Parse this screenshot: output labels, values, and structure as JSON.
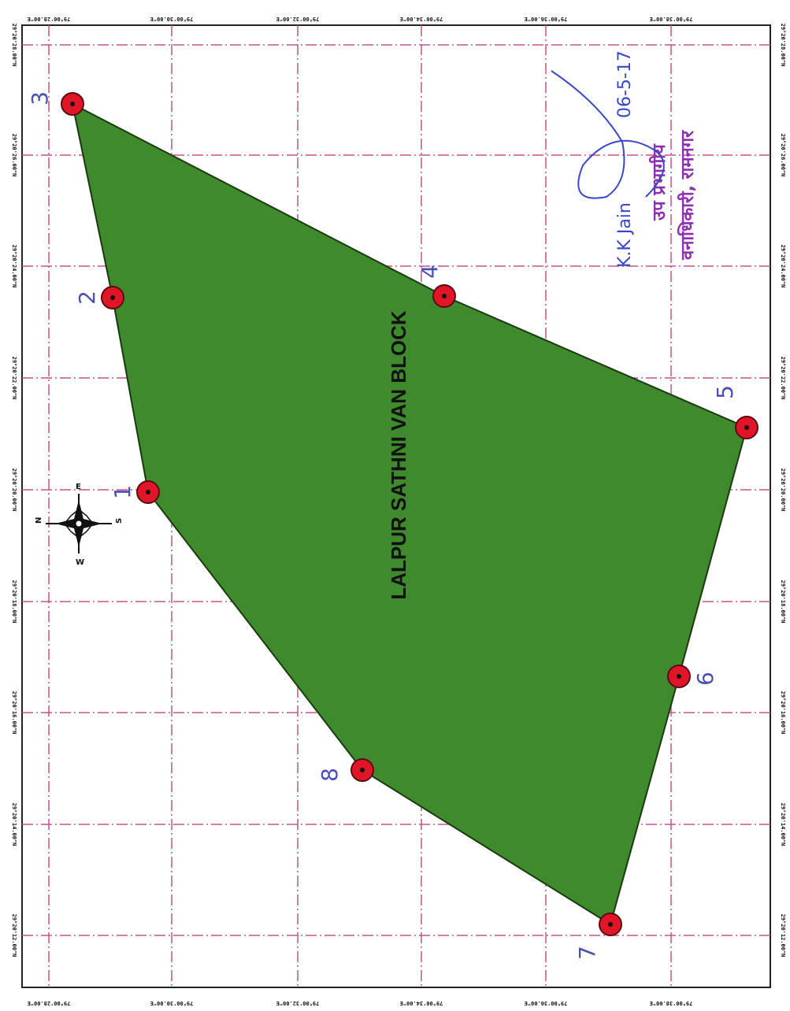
{
  "map": {
    "block_name": "LALPUR SATHNI VAN BLOCK",
    "colors": {
      "polygon_fill": "#3f8a2c",
      "polygon_stroke": "#1a3a10",
      "grid_line": "#c8508c",
      "marker_fill": "#e01628",
      "signature_blue": "#3a47c9",
      "stamp_purple": "#8e2fb3"
    },
    "vertices": [
      {
        "id": "1",
        "label": "1"
      },
      {
        "id": "2",
        "label": "2"
      },
      {
        "id": "3",
        "label": "3"
      },
      {
        "id": "4",
        "label": "4"
      },
      {
        "id": "5",
        "label": "5"
      },
      {
        "id": "6",
        "label": "6"
      },
      {
        "id": "7",
        "label": "7"
      },
      {
        "id": "8",
        "label": "8"
      }
    ],
    "grid_labels": {
      "top": [
        "79°00'28.00\"E",
        "79°00'30.00\"E",
        "79°00'32.00\"E",
        "79°00'34.00\"E",
        "79°00'36.00\"E",
        "79°00'38.00\"E"
      ],
      "bottom": [
        "79°00'28.00\"E",
        "79°00'30.00\"E",
        "79°00'32.00\"E",
        "79°00'34.00\"E",
        "79°00'36.00\"E",
        "79°00'38.00\"E"
      ],
      "left": [
        "29°20'28.00\"N",
        "29°20'26.00\"N",
        "29°20'24.00\"N",
        "29°20'22.00\"N",
        "29°20'20.00\"N",
        "29°20'18.00\"N",
        "29°20'16.00\"N",
        "29°20'14.00\"N",
        "29°20'12.00\"N"
      ],
      "right": [
        "29°20'28.00\"N",
        "29°20'26.00\"N",
        "29°20'24.00\"N",
        "29°20'22.00\"N",
        "29°20'20.00\"N",
        "29°20'18.00\"N",
        "29°20'16.00\"N",
        "29°20'14.00\"N",
        "29°20'12.00\"N"
      ]
    },
    "compass": {
      "n": "N",
      "s": "S",
      "e": "E",
      "w": "W"
    },
    "signature": {
      "name": "K.K Jain",
      "date": "06-5-17",
      "stamp_line1": "उप प्रभागीय",
      "stamp_line2": "वनाधिकारी, रामनगर"
    }
  }
}
